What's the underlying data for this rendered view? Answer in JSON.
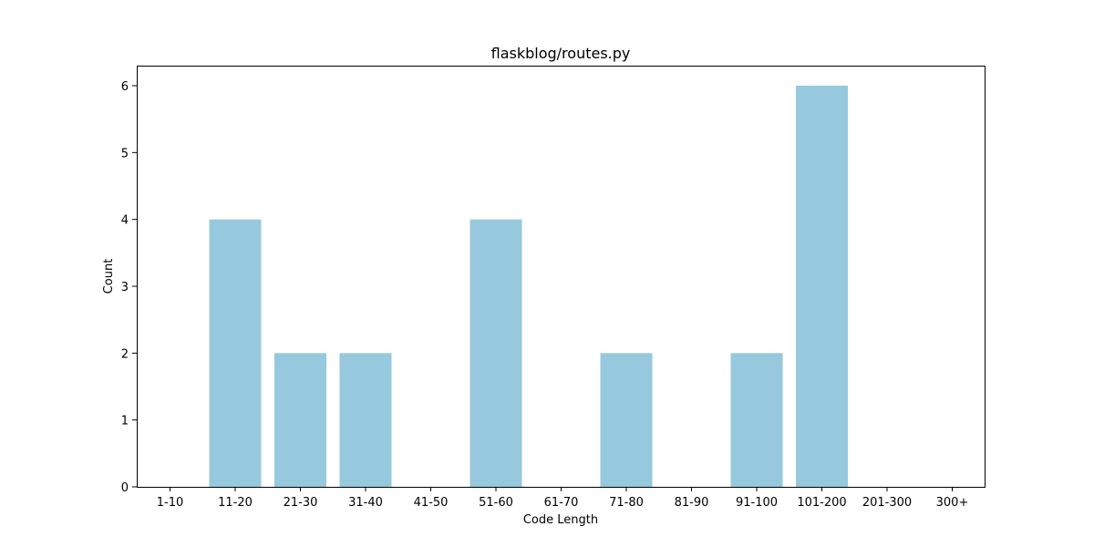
{
  "chart_data": {
    "type": "bar",
    "title": "flaskblog/routes.py",
    "xlabel": "Code Length",
    "ylabel": "Count",
    "categories": [
      "1-10",
      "11-20",
      "21-30",
      "31-40",
      "41-50",
      "51-60",
      "61-70",
      "71-80",
      "81-90",
      "91-100",
      "101-200",
      "201-300",
      "300+"
    ],
    "values": [
      0,
      4,
      2,
      2,
      0,
      4,
      0,
      2,
      0,
      2,
      6,
      0,
      0
    ],
    "ylim": [
      0,
      6.3
    ],
    "yticks": [
      0,
      1,
      2,
      3,
      4,
      5,
      6
    ],
    "grid": false,
    "legend": "none",
    "bar_color": "#96c9dd",
    "axis_color": "#000000"
  }
}
